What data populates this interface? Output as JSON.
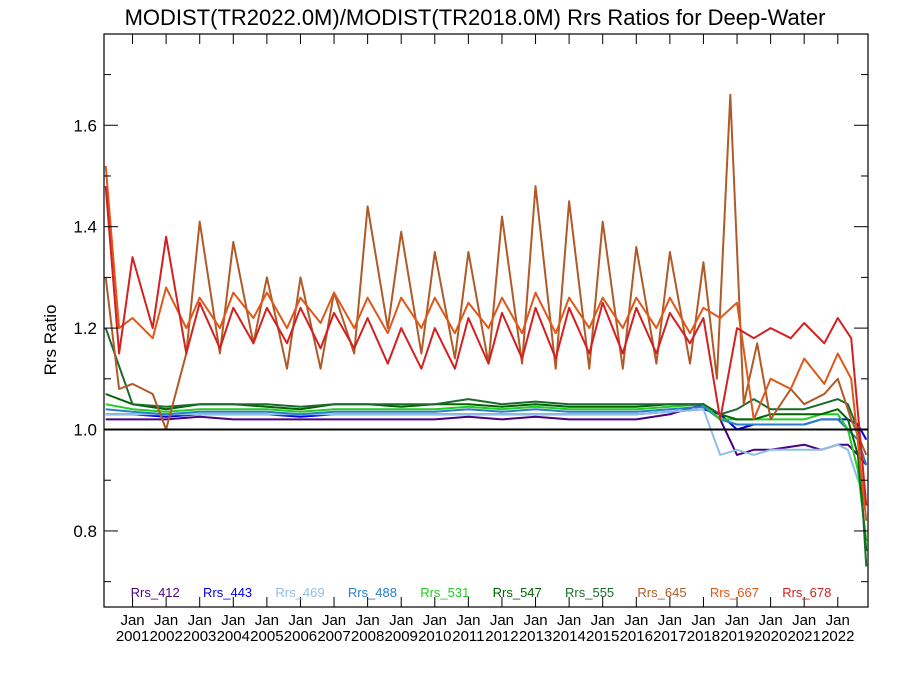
{
  "chart_data": {
    "type": "line",
    "title": "MODIST(TR2022.0M)/MODIST(TR2018.0M)  Rrs Ratios for Deep-Water",
    "ylabel": "Rrs Ratio",
    "xlabel": "",
    "ylim": [
      0.65,
      1.78
    ],
    "yticks": [
      "0.8",
      "1.0",
      "1.2",
      "1.4",
      "1.6"
    ],
    "ytick_values": [
      0.8,
      1.0,
      1.2,
      1.4,
      1.6
    ],
    "xlim": [
      2000.15,
      2022.9
    ],
    "xticks": [
      {
        "top": "Jan",
        "bottom": "2001"
      },
      {
        "top": "Jan",
        "bottom": "2002"
      },
      {
        "top": "Jan",
        "bottom": "2003"
      },
      {
        "top": "Jan",
        "bottom": "2004"
      },
      {
        "top": "Jan",
        "bottom": "2005"
      },
      {
        "top": "Jan",
        "bottom": "2006"
      },
      {
        "top": "Jan",
        "bottom": "2007"
      },
      {
        "top": "Jan",
        "bottom": "2008"
      },
      {
        "top": "Jan",
        "bottom": "2009"
      },
      {
        "top": "Jan",
        "bottom": "2010"
      },
      {
        "top": "Jan",
        "bottom": "2011"
      },
      {
        "top": "Jan",
        "bottom": "2012"
      },
      {
        "top": "Jan",
        "bottom": "2013"
      },
      {
        "top": "Jan",
        "bottom": "2014"
      },
      {
        "top": "Jan",
        "bottom": "2015"
      },
      {
        "top": "Jan",
        "bottom": "2016"
      },
      {
        "top": "Jan",
        "bottom": "2017"
      },
      {
        "top": "Jan",
        "bottom": "2018"
      },
      {
        "top": "Jan",
        "bottom": "2019"
      },
      {
        "top": "Jan",
        "bottom": "2020"
      },
      {
        "top": "Jan",
        "bottom": "2021"
      },
      {
        "top": "Jan",
        "bottom": "2022"
      }
    ],
    "xtick_values": [
      2001,
      2002,
      2003,
      2004,
      2005,
      2006,
      2007,
      2008,
      2009,
      2010,
      2011,
      2012,
      2013,
      2014,
      2015,
      2016,
      2017,
      2018,
      2019,
      2020,
      2021,
      2022
    ],
    "reference_line": {
      "y": 1.0,
      "color": "#000000"
    },
    "grid": false,
    "legend_position": "bottom",
    "series": [
      {
        "name": "Rrs_412",
        "color": "#4b0082",
        "x": [
          2000.2,
          2001,
          2002,
          2003,
          2004,
          2005,
          2006,
          2007,
          2008,
          2009,
          2010,
          2011,
          2012,
          2013,
          2014,
          2015,
          2016,
          2017,
          2018,
          2018.5,
          2019,
          2019.5,
          2020,
          2021,
          2021.5,
          2022,
          2022.3,
          2022.6,
          2022.85
        ],
        "y": [
          1.02,
          1.02,
          1.02,
          1.025,
          1.02,
          1.02,
          1.02,
          1.02,
          1.02,
          1.02,
          1.02,
          1.025,
          1.02,
          1.025,
          1.02,
          1.02,
          1.02,
          1.03,
          1.05,
          1.02,
          0.95,
          0.96,
          0.96,
          0.97,
          0.96,
          0.97,
          0.97,
          0.95,
          0.93
        ]
      },
      {
        "name": "Rrs_443",
        "color": "#0000ee",
        "x": [
          2000.2,
          2001,
          2002,
          2003,
          2004,
          2005,
          2006,
          2007,
          2008,
          2009,
          2010,
          2011,
          2012,
          2013,
          2014,
          2015,
          2016,
          2017,
          2018,
          2018.5,
          2019,
          2019.5,
          2020,
          2021,
          2021.5,
          2022,
          2022.3,
          2022.6,
          2022.85
        ],
        "y": [
          1.03,
          1.03,
          1.025,
          1.03,
          1.03,
          1.03,
          1.025,
          1.03,
          1.03,
          1.03,
          1.03,
          1.03,
          1.03,
          1.03,
          1.03,
          1.03,
          1.03,
          1.035,
          1.04,
          1.03,
          1.0,
          1.01,
          1.01,
          1.01,
          1.02,
          1.02,
          1.02,
          1.01,
          0.98
        ]
      },
      {
        "name": "Rrs_469",
        "color": "#8ec0e6",
        "x": [
          2000.2,
          2001,
          2002,
          2003,
          2004,
          2005,
          2006,
          2007,
          2008,
          2009,
          2010,
          2011,
          2012,
          2013,
          2014,
          2015,
          2016,
          2017,
          2018,
          2018.5,
          2019,
          2019.5,
          2020,
          2021,
          2021.5,
          2022,
          2022.3,
          2022.6,
          2022.85
        ],
        "y": [
          1.03,
          1.03,
          1.03,
          1.03,
          1.03,
          1.03,
          1.03,
          1.03,
          1.03,
          1.03,
          1.03,
          1.03,
          1.03,
          1.03,
          1.03,
          1.03,
          1.03,
          1.035,
          1.04,
          0.95,
          0.96,
          0.95,
          0.96,
          0.96,
          0.96,
          0.97,
          0.96,
          0.9,
          0.87
        ]
      },
      {
        "name": "Rrs_488",
        "color": "#2a7fc8",
        "x": [
          2000.2,
          2001,
          2002,
          2003,
          2004,
          2005,
          2006,
          2007,
          2008,
          2009,
          2010,
          2011,
          2012,
          2013,
          2014,
          2015,
          2016,
          2017,
          2018,
          2018.5,
          2019,
          2019.5,
          2020,
          2021,
          2021.5,
          2022,
          2022.3,
          2022.6,
          2022.85
        ],
        "y": [
          1.04,
          1.035,
          1.03,
          1.035,
          1.035,
          1.035,
          1.03,
          1.035,
          1.035,
          1.035,
          1.035,
          1.04,
          1.035,
          1.04,
          1.035,
          1.035,
          1.035,
          1.04,
          1.045,
          1.02,
          1.01,
          1.01,
          1.01,
          1.01,
          1.02,
          1.02,
          1.0,
          0.98,
          0.93
        ]
      },
      {
        "name": "Rrs_531",
        "color": "#22cc22",
        "x": [
          2000.2,
          2001,
          2002,
          2003,
          2004,
          2005,
          2006,
          2007,
          2008,
          2009,
          2010,
          2011,
          2012,
          2013,
          2014,
          2015,
          2016,
          2017,
          2018,
          2018.5,
          2019,
          2019.5,
          2020,
          2021,
          2021.5,
          2022,
          2022.3,
          2022.6,
          2022.85
        ],
        "y": [
          1.05,
          1.04,
          1.035,
          1.04,
          1.04,
          1.04,
          1.035,
          1.04,
          1.04,
          1.04,
          1.04,
          1.045,
          1.04,
          1.045,
          1.04,
          1.04,
          1.04,
          1.045,
          1.05,
          1.02,
          1.02,
          1.02,
          1.02,
          1.02,
          1.03,
          1.03,
          1.0,
          0.92,
          0.78
        ]
      },
      {
        "name": "Rrs_547",
        "color": "#006400",
        "x": [
          2000.2,
          2001,
          2002,
          2003,
          2004,
          2005,
          2006,
          2007,
          2008,
          2009,
          2010,
          2011,
          2012,
          2013,
          2014,
          2015,
          2016,
          2017,
          2018,
          2018.5,
          2019,
          2019.5,
          2020,
          2021,
          2021.5,
          2022,
          2022.3,
          2022.6,
          2022.85
        ],
        "y": [
          1.07,
          1.05,
          1.04,
          1.05,
          1.05,
          1.045,
          1.04,
          1.05,
          1.05,
          1.045,
          1.05,
          1.05,
          1.045,
          1.05,
          1.045,
          1.045,
          1.045,
          1.05,
          1.05,
          1.03,
          1.02,
          1.02,
          1.03,
          1.03,
          1.03,
          1.04,
          1.02,
          0.95,
          0.76
        ]
      },
      {
        "name": "Rrs_555",
        "color": "#1a6b2e",
        "x": [
          2000.2,
          2001,
          2002,
          2003,
          2004,
          2005,
          2006,
          2007,
          2008,
          2009,
          2010,
          2011,
          2012,
          2013,
          2014,
          2015,
          2016,
          2017,
          2018,
          2018.5,
          2019,
          2019.5,
          2020,
          2021,
          2021.5,
          2022,
          2022.3,
          2022.6,
          2022.85
        ],
        "y": [
          1.2,
          1.05,
          1.045,
          1.05,
          1.05,
          1.05,
          1.045,
          1.05,
          1.05,
          1.05,
          1.05,
          1.06,
          1.05,
          1.055,
          1.05,
          1.05,
          1.05,
          1.05,
          1.05,
          1.03,
          1.04,
          1.06,
          1.04,
          1.04,
          1.05,
          1.06,
          1.05,
          1.0,
          0.73
        ]
      },
      {
        "name": "Rrs_645",
        "color": "#b05a28",
        "x": [
          2000.2,
          2000.6,
          2001,
          2001.6,
          2002,
          2002.6,
          2003,
          2003.6,
          2004,
          2004.6,
          2005,
          2005.6,
          2006,
          2006.6,
          2007,
          2007.6,
          2008,
          2008.6,
          2009,
          2009.6,
          2010,
          2010.6,
          2011,
          2011.6,
          2012,
          2012.6,
          2013,
          2013.6,
          2014,
          2014.6,
          2015,
          2015.6,
          2016,
          2016.6,
          2017,
          2017.6,
          2018,
          2018.4,
          2018.8,
          2019.2,
          2019.6,
          2020,
          2020.6,
          2021,
          2021.6,
          2022,
          2022.4,
          2022.85
        ],
        "y": [
          1.3,
          1.08,
          1.09,
          1.07,
          1.0,
          1.15,
          1.41,
          1.15,
          1.37,
          1.17,
          1.3,
          1.12,
          1.3,
          1.12,
          1.27,
          1.15,
          1.44,
          1.2,
          1.39,
          1.15,
          1.35,
          1.14,
          1.35,
          1.13,
          1.42,
          1.13,
          1.48,
          1.12,
          1.45,
          1.12,
          1.41,
          1.12,
          1.36,
          1.13,
          1.35,
          1.13,
          1.33,
          1.1,
          1.66,
          1.05,
          1.17,
          1.02,
          1.08,
          1.05,
          1.07,
          1.1,
          1.02,
          0.95
        ]
      },
      {
        "name": "Rrs_667",
        "color": "#e0571a",
        "x": [
          2000.2,
          2000.6,
          2001,
          2001.6,
          2002,
          2002.6,
          2003,
          2003.6,
          2004,
          2004.6,
          2005,
          2005.6,
          2006,
          2006.6,
          2007,
          2007.6,
          2008,
          2008.6,
          2009,
          2009.6,
          2010,
          2010.6,
          2011,
          2011.6,
          2012,
          2012.6,
          2013,
          2013.6,
          2014,
          2014.6,
          2015,
          2015.6,
          2016,
          2016.6,
          2017,
          2017.6,
          2018,
          2018.5,
          2019,
          2019.5,
          2020,
          2020.6,
          2021,
          2021.6,
          2022,
          2022.4,
          2022.85
        ],
        "y": [
          1.52,
          1.2,
          1.22,
          1.18,
          1.28,
          1.2,
          1.26,
          1.2,
          1.27,
          1.22,
          1.27,
          1.2,
          1.26,
          1.21,
          1.27,
          1.2,
          1.26,
          1.19,
          1.26,
          1.2,
          1.26,
          1.19,
          1.25,
          1.2,
          1.26,
          1.19,
          1.27,
          1.19,
          1.26,
          1.2,
          1.26,
          1.2,
          1.26,
          1.2,
          1.26,
          1.19,
          1.24,
          1.22,
          1.25,
          1.02,
          1.1,
          1.08,
          1.14,
          1.09,
          1.15,
          1.1,
          0.82
        ]
      },
      {
        "name": "Rrs_678",
        "color": "#d42020",
        "x": [
          2000.2,
          2000.6,
          2001,
          2001.6,
          2002,
          2002.6,
          2003,
          2003.6,
          2004,
          2004.6,
          2005,
          2005.6,
          2006,
          2006.6,
          2007,
          2007.6,
          2008,
          2008.6,
          2009,
          2009.6,
          2010,
          2010.6,
          2011,
          2011.6,
          2012,
          2012.6,
          2013,
          2013.6,
          2014,
          2014.6,
          2015,
          2015.6,
          2016,
          2016.6,
          2017,
          2017.6,
          2018,
          2018.5,
          2019,
          2019.5,
          2020,
          2020.6,
          2021,
          2021.6,
          2022,
          2022.4,
          2022.85
        ],
        "y": [
          1.48,
          1.15,
          1.34,
          1.2,
          1.38,
          1.15,
          1.25,
          1.16,
          1.24,
          1.17,
          1.24,
          1.17,
          1.24,
          1.16,
          1.23,
          1.16,
          1.22,
          1.13,
          1.2,
          1.12,
          1.2,
          1.12,
          1.22,
          1.13,
          1.23,
          1.14,
          1.24,
          1.14,
          1.24,
          1.15,
          1.25,
          1.15,
          1.24,
          1.15,
          1.23,
          1.17,
          1.22,
          1.02,
          1.2,
          1.18,
          1.2,
          1.18,
          1.21,
          1.17,
          1.22,
          1.18,
          0.85
        ]
      }
    ]
  }
}
